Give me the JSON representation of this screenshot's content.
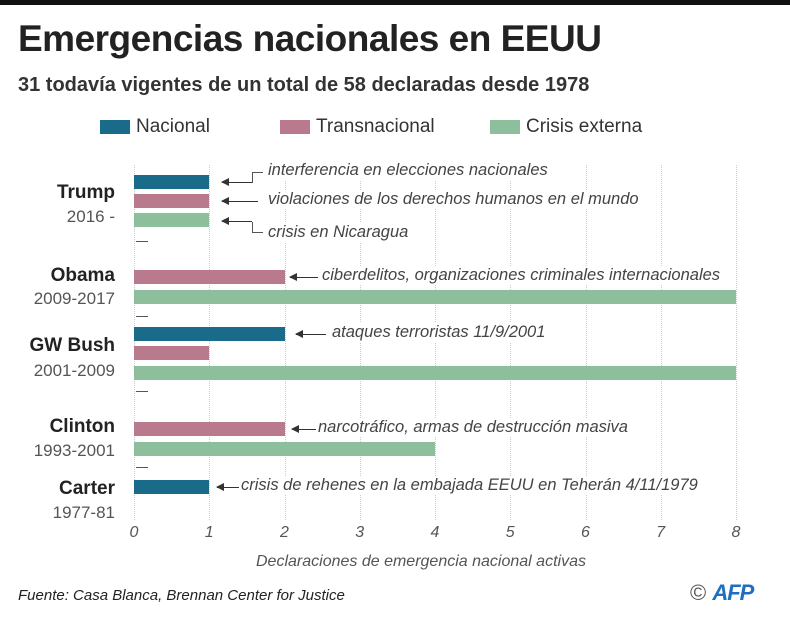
{
  "title": "Emergencias nacionales en EEUU",
  "subtitle": "31 todavía vigentes de un total de 58 declaradas desde 1978",
  "source": "Fuente: Casa Blanca, Brennan Center for Justice",
  "logo": "© AFP",
  "colors": {
    "Nacional": "#1a6a8a",
    "Transnacional": "#b87a8c",
    "Crisis externa": "#8dbf9c"
  },
  "chart_data": {
    "type": "bar",
    "orientation": "horizontal",
    "title": "Emergencias nacionales en EEUU",
    "xlabel": "Declaraciones de emergencia nacional activas",
    "xlim": [
      0,
      8
    ],
    "xticks": [
      "0",
      "1",
      "2",
      "3",
      "4",
      "5",
      "6",
      "7",
      "8"
    ],
    "grid": true,
    "legend_position": "top",
    "categories": [
      {
        "name": "Trump",
        "years": "2016 -"
      },
      {
        "name": "Obama",
        "years": "2009-2017"
      },
      {
        "name": "GW Bush",
        "years": "2001-2009"
      },
      {
        "name": "Clinton",
        "years": "1993-2001"
      },
      {
        "name": "Carter",
        "years": "1977-81"
      }
    ],
    "series": [
      {
        "name": "Nacional",
        "values": [
          1,
          0,
          2,
          0,
          1
        ]
      },
      {
        "name": "Transnacional",
        "values": [
          1,
          2,
          1,
          2,
          0
        ]
      },
      {
        "name": "Crisis externa",
        "values": [
          1,
          8,
          8,
          4,
          0
        ]
      }
    ],
    "annotations": [
      "interferencia en elecciones nacionales",
      "violaciones de los derechos humanos en el mundo",
      "crisis en Nicaragua",
      "ciberdelitos, organizaciones criminales internacionales",
      "ataques terroristas 11/9/2001",
      "narcotráfico, armas de destrucción masiva",
      "crisis de rehenes en la embajada EEUU en Teherán 4/11/1979"
    ]
  }
}
